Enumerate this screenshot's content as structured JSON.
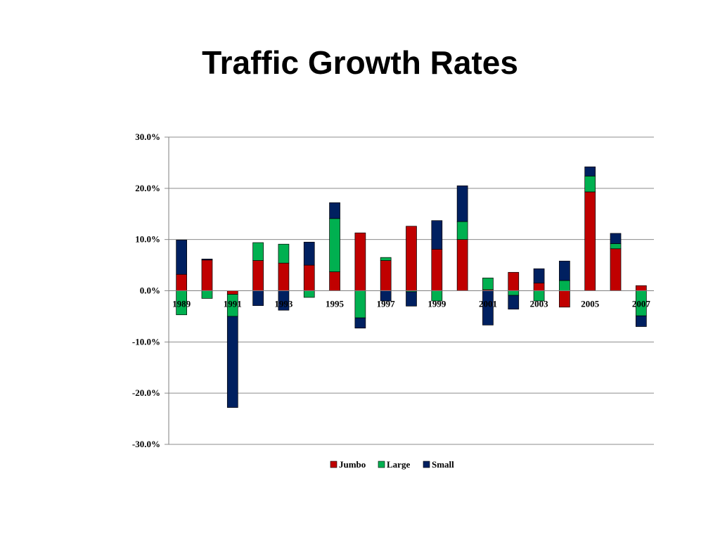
{
  "page": {
    "title": "Traffic Growth Rates"
  },
  "colors": {
    "Jumbo": "#C00000",
    "Large": "#00B050",
    "Small": "#002060",
    "grid": "#8c8c8c",
    "axis": "#7f7f7f"
  },
  "chart_data": {
    "type": "bar",
    "stacked": true,
    "title": "Traffic Growth Rates",
    "xlabel": "",
    "ylabel": "",
    "ylim": [
      -30,
      30
    ],
    "yticks": [
      30,
      20,
      10,
      0,
      -10,
      -20,
      -30
    ],
    "ytick_labels": [
      "30.0%",
      "20.0%",
      "10.0%",
      "0.0%",
      "-10.0%",
      "-20.0%",
      "-30.0%"
    ],
    "categories": [
      "1989",
      "1990",
      "1991",
      "1992",
      "1993",
      "1994",
      "1995",
      "1996",
      "1997",
      "1998",
      "1999",
      "2000",
      "2001",
      "2002",
      "2003",
      "2004",
      "2005",
      "2006",
      "2007"
    ],
    "xtick_labels": [
      "1989",
      "",
      "1991",
      "",
      "1993",
      "",
      "1995",
      "",
      "1997",
      "",
      "1999",
      "",
      "2001",
      "",
      "2003",
      "",
      "2005",
      "",
      "2007"
    ],
    "legend_position": "bottom",
    "grid": true,
    "series": [
      {
        "name": "Jumbo",
        "values": [
          3.2,
          6.0,
          -0.7,
          5.9,
          5.4,
          5.0,
          3.7,
          11.3,
          5.9,
          12.6,
          8.1,
          10.0,
          0.2,
          3.6,
          1.5,
          -3.2,
          19.3,
          8.2,
          1.0
        ]
      },
      {
        "name": "Large",
        "values": [
          -4.7,
          -1.5,
          -4.3,
          3.5,
          3.7,
          -1.3,
          10.4,
          -5.3,
          0.6,
          -0.2,
          -2.0,
          3.5,
          2.3,
          -0.9,
          -2.0,
          2.0,
          3.1,
          1.0,
          -4.9
        ]
      },
      {
        "name": "Small",
        "values": [
          6.7,
          0.2,
          -17.8,
          -2.9,
          -3.8,
          4.5,
          3.1,
          -2.0,
          -2.0,
          -2.8,
          5.6,
          7.0,
          -6.7,
          -2.7,
          2.8,
          3.8,
          1.8,
          2.0,
          -2.1
        ]
      }
    ]
  }
}
